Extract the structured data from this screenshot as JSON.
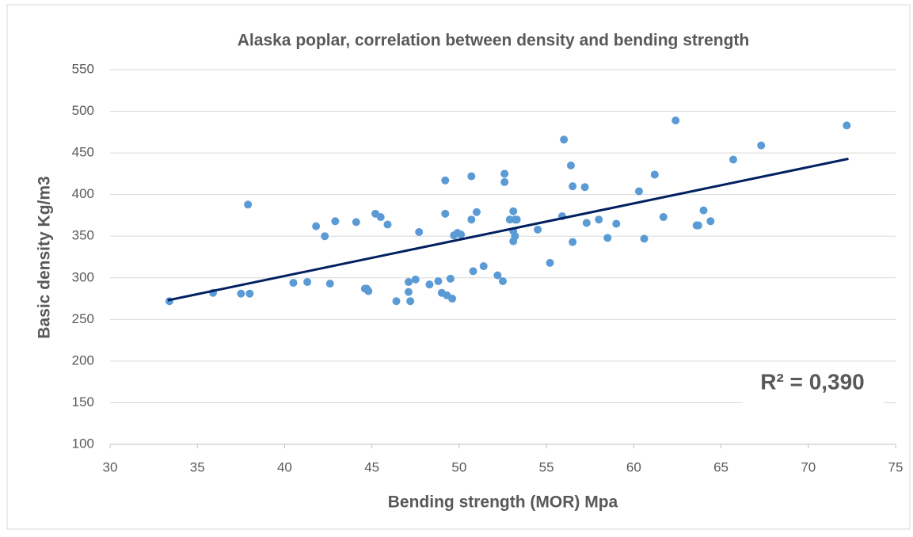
{
  "chart_data": {
    "type": "scatter",
    "title": "Alaska poplar, correlation between density and bending strength",
    "x_label": "Bending strength (MOR) Mpa",
    "y_label": "Basic density Kg/m3",
    "annotation": "R² = 0,390",
    "color": "#5b9bd5",
    "trendline": {
      "color": "#002060",
      "x": [
        33.3,
        72.3
      ],
      "values": [
        273,
        443
      ]
    },
    "x": [
      33.4,
      35.9,
      37.5,
      38.0,
      37.9,
      40.5,
      41.3,
      41.8,
      42.3,
      42.6,
      42.9,
      44.1,
      44.6,
      44.7,
      44.8,
      45.2,
      45.5,
      45.9,
      46.4,
      47.1,
      47.1,
      47.2,
      47.5,
      47.7,
      48.3,
      48.8,
      49.0,
      49.2,
      49.2,
      49.3,
      49.5,
      49.6,
      49.7,
      49.9,
      50.1,
      50.7,
      50.7,
      50.8,
      51.0,
      51.4,
      52.2,
      52.5,
      52.6,
      52.6,
      52.9,
      53.1,
      53.1,
      53.2,
      53.1,
      53.2,
      53.3,
      54.5,
      55.2,
      55.9,
      56.0,
      56.4,
      56.5,
      56.5,
      57.2,
      57.3,
      58.0,
      58.5,
      59.0,
      60.3,
      60.6,
      61.2,
      61.7,
      62.4,
      63.6,
      63.7,
      64.0,
      64.4,
      65.7,
      67.3,
      72.2
    ],
    "values": [
      272,
      282,
      281,
      281,
      388,
      294,
      295,
      362,
      350,
      293,
      368,
      367,
      287,
      287,
      284,
      377,
      373,
      364,
      272,
      295,
      283,
      272,
      298,
      355,
      292,
      296,
      282,
      417,
      377,
      279,
      299,
      275,
      351,
      354,
      352,
      422,
      370,
      308,
      379,
      314,
      303,
      296,
      425,
      415,
      370,
      380,
      356,
      370,
      344,
      350,
      370,
      358,
      318,
      374,
      466,
      435,
      343,
      410,
      409,
      366,
      370,
      348,
      365,
      404,
      347,
      424,
      373,
      489,
      363,
      363,
      381,
      368,
      442,
      459,
      483
    ],
    "xlim": [
      30,
      75
    ],
    "xticks": [
      30,
      35,
      40,
      45,
      50,
      55,
      60,
      65,
      70,
      75
    ],
    "ylim": [
      100,
      550
    ],
    "yticks": [
      100,
      150,
      200,
      250,
      300,
      350,
      400,
      450,
      500,
      550
    ],
    "grid": true
  }
}
